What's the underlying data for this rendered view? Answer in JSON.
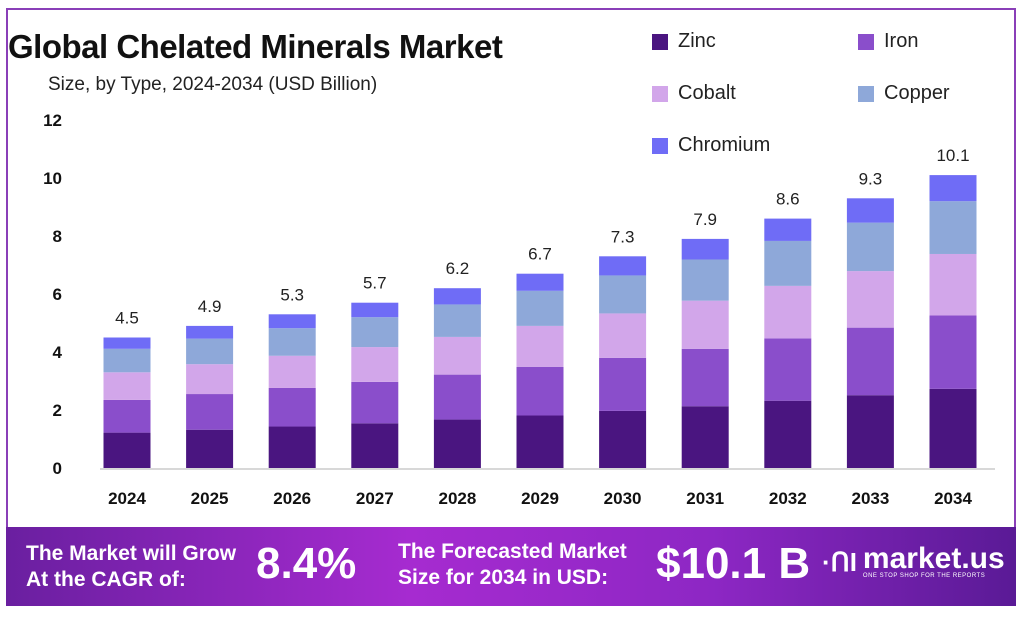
{
  "header": {
    "title": "Global Chelated Minerals Market",
    "subtitle": "Size, by Type, 2024-2034 (USD Billion)"
  },
  "chart_data": {
    "type": "bar",
    "stacked": true,
    "title": "Global Chelated Minerals Market",
    "subtitle": "Size, by Type, 2024-2034 (USD Billion)",
    "xlabel": "",
    "ylabel": "",
    "ylim": [
      0,
      12
    ],
    "yticks": [
      0,
      2,
      4,
      6,
      8,
      10,
      12
    ],
    "legend_position": "top-right",
    "grid": false,
    "categories": [
      "2024",
      "2025",
      "2026",
      "2027",
      "2028",
      "2029",
      "2030",
      "2031",
      "2032",
      "2033",
      "2034"
    ],
    "totals": [
      4.5,
      4.9,
      5.3,
      5.7,
      6.2,
      6.7,
      7.3,
      7.9,
      8.6,
      9.3,
      10.1
    ],
    "series": [
      {
        "name": "Zinc",
        "color": "#4a1580",
        "values": [
          1.22,
          1.32,
          1.43,
          1.54,
          1.67,
          1.81,
          1.97,
          2.13,
          2.32,
          2.51,
          2.73
        ]
      },
      {
        "name": "Iron",
        "color": "#8a4ecb",
        "values": [
          1.13,
          1.23,
          1.33,
          1.43,
          1.55,
          1.68,
          1.83,
          1.98,
          2.15,
          2.33,
          2.53
        ]
      },
      {
        "name": "Cobalt",
        "color": "#d2a6ea",
        "values": [
          0.95,
          1.03,
          1.11,
          1.2,
          1.3,
          1.41,
          1.53,
          1.66,
          1.81,
          1.95,
          2.12
        ]
      },
      {
        "name": "Copper",
        "color": "#8ea8d9",
        "values": [
          0.81,
          0.88,
          0.95,
          1.03,
          1.12,
          1.21,
          1.31,
          1.42,
          1.55,
          1.67,
          1.82
        ]
      },
      {
        "name": "Chromium",
        "color": "#6f6cf6",
        "values": [
          0.39,
          0.44,
          0.48,
          0.5,
          0.56,
          0.59,
          0.66,
          0.71,
          0.77,
          0.84,
          0.9
        ]
      }
    ]
  },
  "banner": {
    "cagr_label_1": "The Market will Grow",
    "cagr_label_2": "At the CAGR of:",
    "cagr_value": "8.4%",
    "forecast_label_1": "The Forecasted Market",
    "forecast_label_2": "Size for 2034 in USD:",
    "forecast_value": "$10.1 B",
    "brand": "market.us",
    "brand_tagline": "ONE STOP SHOP FOR THE REPORTS"
  }
}
